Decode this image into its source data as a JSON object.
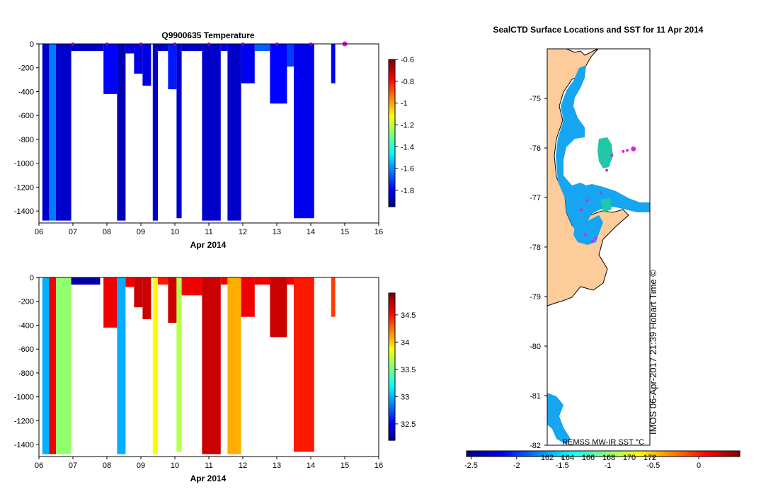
{
  "chart_data": [
    {
      "type": "heatmap",
      "title": "Q9900635  Temperature",
      "xlabel": "Apr 2014",
      "ylabel": "",
      "xlim": [
        6,
        16
      ],
      "ylim": [
        -1500,
        0
      ],
      "x_ticks": [
        "06",
        "07",
        "08",
        "09",
        "10",
        "11",
        "12",
        "13",
        "14",
        "15",
        "16"
      ],
      "y_ticks": [
        0,
        -200,
        -400,
        -600,
        -800,
        -1000,
        -1200,
        -1400
      ],
      "colorbar": {
        "min": -1.95,
        "max": -0.6,
        "ticks": [
          -0.6,
          -0.8,
          -1,
          -1.2,
          -1.4,
          -1.6,
          -1.8
        ],
        "tick_labels": [
          "-0.6",
          "-0.8",
          "-1",
          "-1.2",
          "-1.4",
          "-1.6",
          "-1.8"
        ]
      },
      "profiles": [
        {
          "x0": 6.1,
          "x1": 6.3,
          "depth": -1480,
          "value": -1.85
        },
        {
          "x0": 6.3,
          "x1": 6.5,
          "depth": -1480,
          "value": -1.62
        },
        {
          "x0": 6.5,
          "x1": 6.95,
          "depth": -1480,
          "value": -1.85
        },
        {
          "x0": 6.95,
          "x1": 7.9,
          "depth": -60,
          "value": -1.85
        },
        {
          "x0": 7.9,
          "x1": 8.3,
          "depth": -420,
          "value": -1.78
        },
        {
          "x0": 8.3,
          "x1": 8.55,
          "depth": -1480,
          "value": -1.88
        },
        {
          "x0": 8.55,
          "x1": 8.8,
          "depth": -80,
          "value": -1.82
        },
        {
          "x0": 8.8,
          "x1": 9.05,
          "depth": -250,
          "value": -1.82
        },
        {
          "x0": 9.05,
          "x1": 9.3,
          "depth": -350,
          "value": -1.82
        },
        {
          "x0": 9.35,
          "x1": 9.5,
          "depth": -1480,
          "value": -1.85
        },
        {
          "x0": 9.5,
          "x1": 9.8,
          "depth": -60,
          "value": -1.85
        },
        {
          "x0": 9.8,
          "x1": 10.05,
          "depth": -380,
          "value": -1.75
        },
        {
          "x0": 10.05,
          "x1": 10.2,
          "depth": -1460,
          "value": -1.85
        },
        {
          "x0": 10.2,
          "x1": 10.8,
          "depth": -60,
          "value": -1.85
        },
        {
          "x0": 10.8,
          "x1": 11.35,
          "depth": -1480,
          "value": -1.85
        },
        {
          "x0": 11.35,
          "x1": 11.55,
          "depth": -60,
          "value": -1.8
        },
        {
          "x0": 11.55,
          "x1": 11.95,
          "depth": -1480,
          "value": -1.85
        },
        {
          "x0": 11.95,
          "x1": 12.35,
          "depth": -330,
          "value": -1.8
        },
        {
          "x0": 12.35,
          "x1": 12.8,
          "depth": -60,
          "value": -1.65
        },
        {
          "x0": 12.8,
          "x1": 13.3,
          "depth": -500,
          "value": -1.78
        },
        {
          "x0": 13.3,
          "x1": 13.5,
          "depth": -190,
          "value": -1.7
        },
        {
          "x0": 13.5,
          "x1": 14.1,
          "depth": -1460,
          "value": -1.8
        },
        {
          "x0": 14.6,
          "x1": 14.72,
          "depth": -330,
          "value": -1.8
        }
      ],
      "surface_markers_x": [
        7.0,
        8.0,
        9.0,
        10.0,
        11.0,
        12.0,
        13.0,
        14.0,
        15.0
      ]
    },
    {
      "type": "heatmap",
      "title": "",
      "xlabel": "Apr 2014",
      "ylabel": "",
      "xlim": [
        6,
        16
      ],
      "ylim": [
        -1500,
        0
      ],
      "x_ticks": [
        "06",
        "07",
        "08",
        "09",
        "10",
        "11",
        "12",
        "13",
        "14",
        "15",
        "16"
      ],
      "y_ticks": [
        0,
        -200,
        -400,
        -600,
        -800,
        -1000,
        -1200,
        -1400
      ],
      "colorbar": {
        "min": 32.2,
        "max": 34.9,
        "ticks": [
          34.5,
          34,
          33.5,
          33,
          32.5
        ],
        "tick_labels": [
          "34.5",
          "34",
          "33.5",
          "33",
          "32.5"
        ]
      },
      "profiles": [
        {
          "x0": 6.1,
          "x1": 6.3,
          "depth": -1480,
          "value": 33.0
        },
        {
          "x0": 6.3,
          "x1": 6.5,
          "depth": -1480,
          "value": 34.6
        },
        {
          "x0": 6.5,
          "x1": 6.95,
          "depth": -1480,
          "value": 33.6
        },
        {
          "x0": 6.95,
          "x1": 7.8,
          "depth": -60,
          "value": 32.3
        },
        {
          "x0": 7.9,
          "x1": 8.3,
          "depth": -420,
          "value": 34.6
        },
        {
          "x0": 8.3,
          "x1": 8.55,
          "depth": -1480,
          "value": 33.0
        },
        {
          "x0": 8.55,
          "x1": 8.8,
          "depth": -80,
          "value": 34.6
        },
        {
          "x0": 8.8,
          "x1": 9.05,
          "depth": -250,
          "value": 34.7
        },
        {
          "x0": 9.05,
          "x1": 9.3,
          "depth": -350,
          "value": 34.7
        },
        {
          "x0": 9.35,
          "x1": 9.5,
          "depth": -1480,
          "value": 33.9
        },
        {
          "x0": 9.5,
          "x1": 9.8,
          "depth": -60,
          "value": 34.5
        },
        {
          "x0": 9.8,
          "x1": 10.05,
          "depth": -380,
          "value": 34.7
        },
        {
          "x0": 10.05,
          "x1": 10.2,
          "depth": -1460,
          "value": 33.7
        },
        {
          "x0": 10.2,
          "x1": 10.8,
          "depth": -150,
          "value": 34.6
        },
        {
          "x0": 10.8,
          "x1": 11.35,
          "depth": -1480,
          "value": 34.7
        },
        {
          "x0": 11.35,
          "x1": 11.55,
          "depth": -60,
          "value": 34.6
        },
        {
          "x0": 11.55,
          "x1": 11.95,
          "depth": -1480,
          "value": 34.1
        },
        {
          "x0": 11.95,
          "x1": 12.35,
          "depth": -330,
          "value": 34.6
        },
        {
          "x0": 12.35,
          "x1": 12.8,
          "depth": -60,
          "value": 34.6
        },
        {
          "x0": 12.8,
          "x1": 13.3,
          "depth": -500,
          "value": 34.7
        },
        {
          "x0": 13.3,
          "x1": 13.5,
          "depth": -60,
          "value": 34.6
        },
        {
          "x0": 13.5,
          "x1": 14.1,
          "depth": -1460,
          "value": 34.5
        },
        {
          "x0": 14.6,
          "x1": 14.72,
          "depth": -330,
          "value": 34.4
        }
      ]
    },
    {
      "type": "scatter",
      "title": "SealCTD Surface Locations and SST for 11 Apr 2014",
      "xlabel": "",
      "ylabel": "",
      "ylim": [
        -82,
        -74
      ],
      "y_ticks": [
        -75,
        -76,
        -77,
        -78,
        -79,
        -80,
        -81,
        -82
      ],
      "points": [
        {
          "x": 0.84,
          "y": -76.02
        },
        {
          "x": 0.78,
          "y": -76.05
        },
        {
          "x": 0.74,
          "y": -76.07
        },
        {
          "x": 0.63,
          "y": -76.15
        },
        {
          "x": 0.58,
          "y": -76.45
        },
        {
          "x": 0.52,
          "y": -76.9
        },
        {
          "x": 0.39,
          "y": -77.06
        },
        {
          "x": 0.33,
          "y": -77.25
        },
        {
          "x": 0.37,
          "y": -77.75
        },
        {
          "x": 0.44,
          "y": -77.88
        },
        {
          "x": 0.47,
          "y": -77.82
        }
      ],
      "sst_colorbar": {
        "min": -2.55,
        "max": 0.45,
        "ticks": [
          -2.5,
          -2,
          -1.5,
          -1,
          -0.5,
          0
        ],
        "tick_labels": [
          "-2.5",
          "-2",
          "-1.5",
          "-1",
          "-0.5",
          "0"
        ]
      },
      "longitude_labels": [
        "162",
        "164",
        "166",
        "168",
        "170",
        "172"
      ],
      "source_label": "REMSS MW-IR SST °C",
      "footer": "IMOS 06-Apr-2017 21:39 Hobart Time ©"
    }
  ]
}
